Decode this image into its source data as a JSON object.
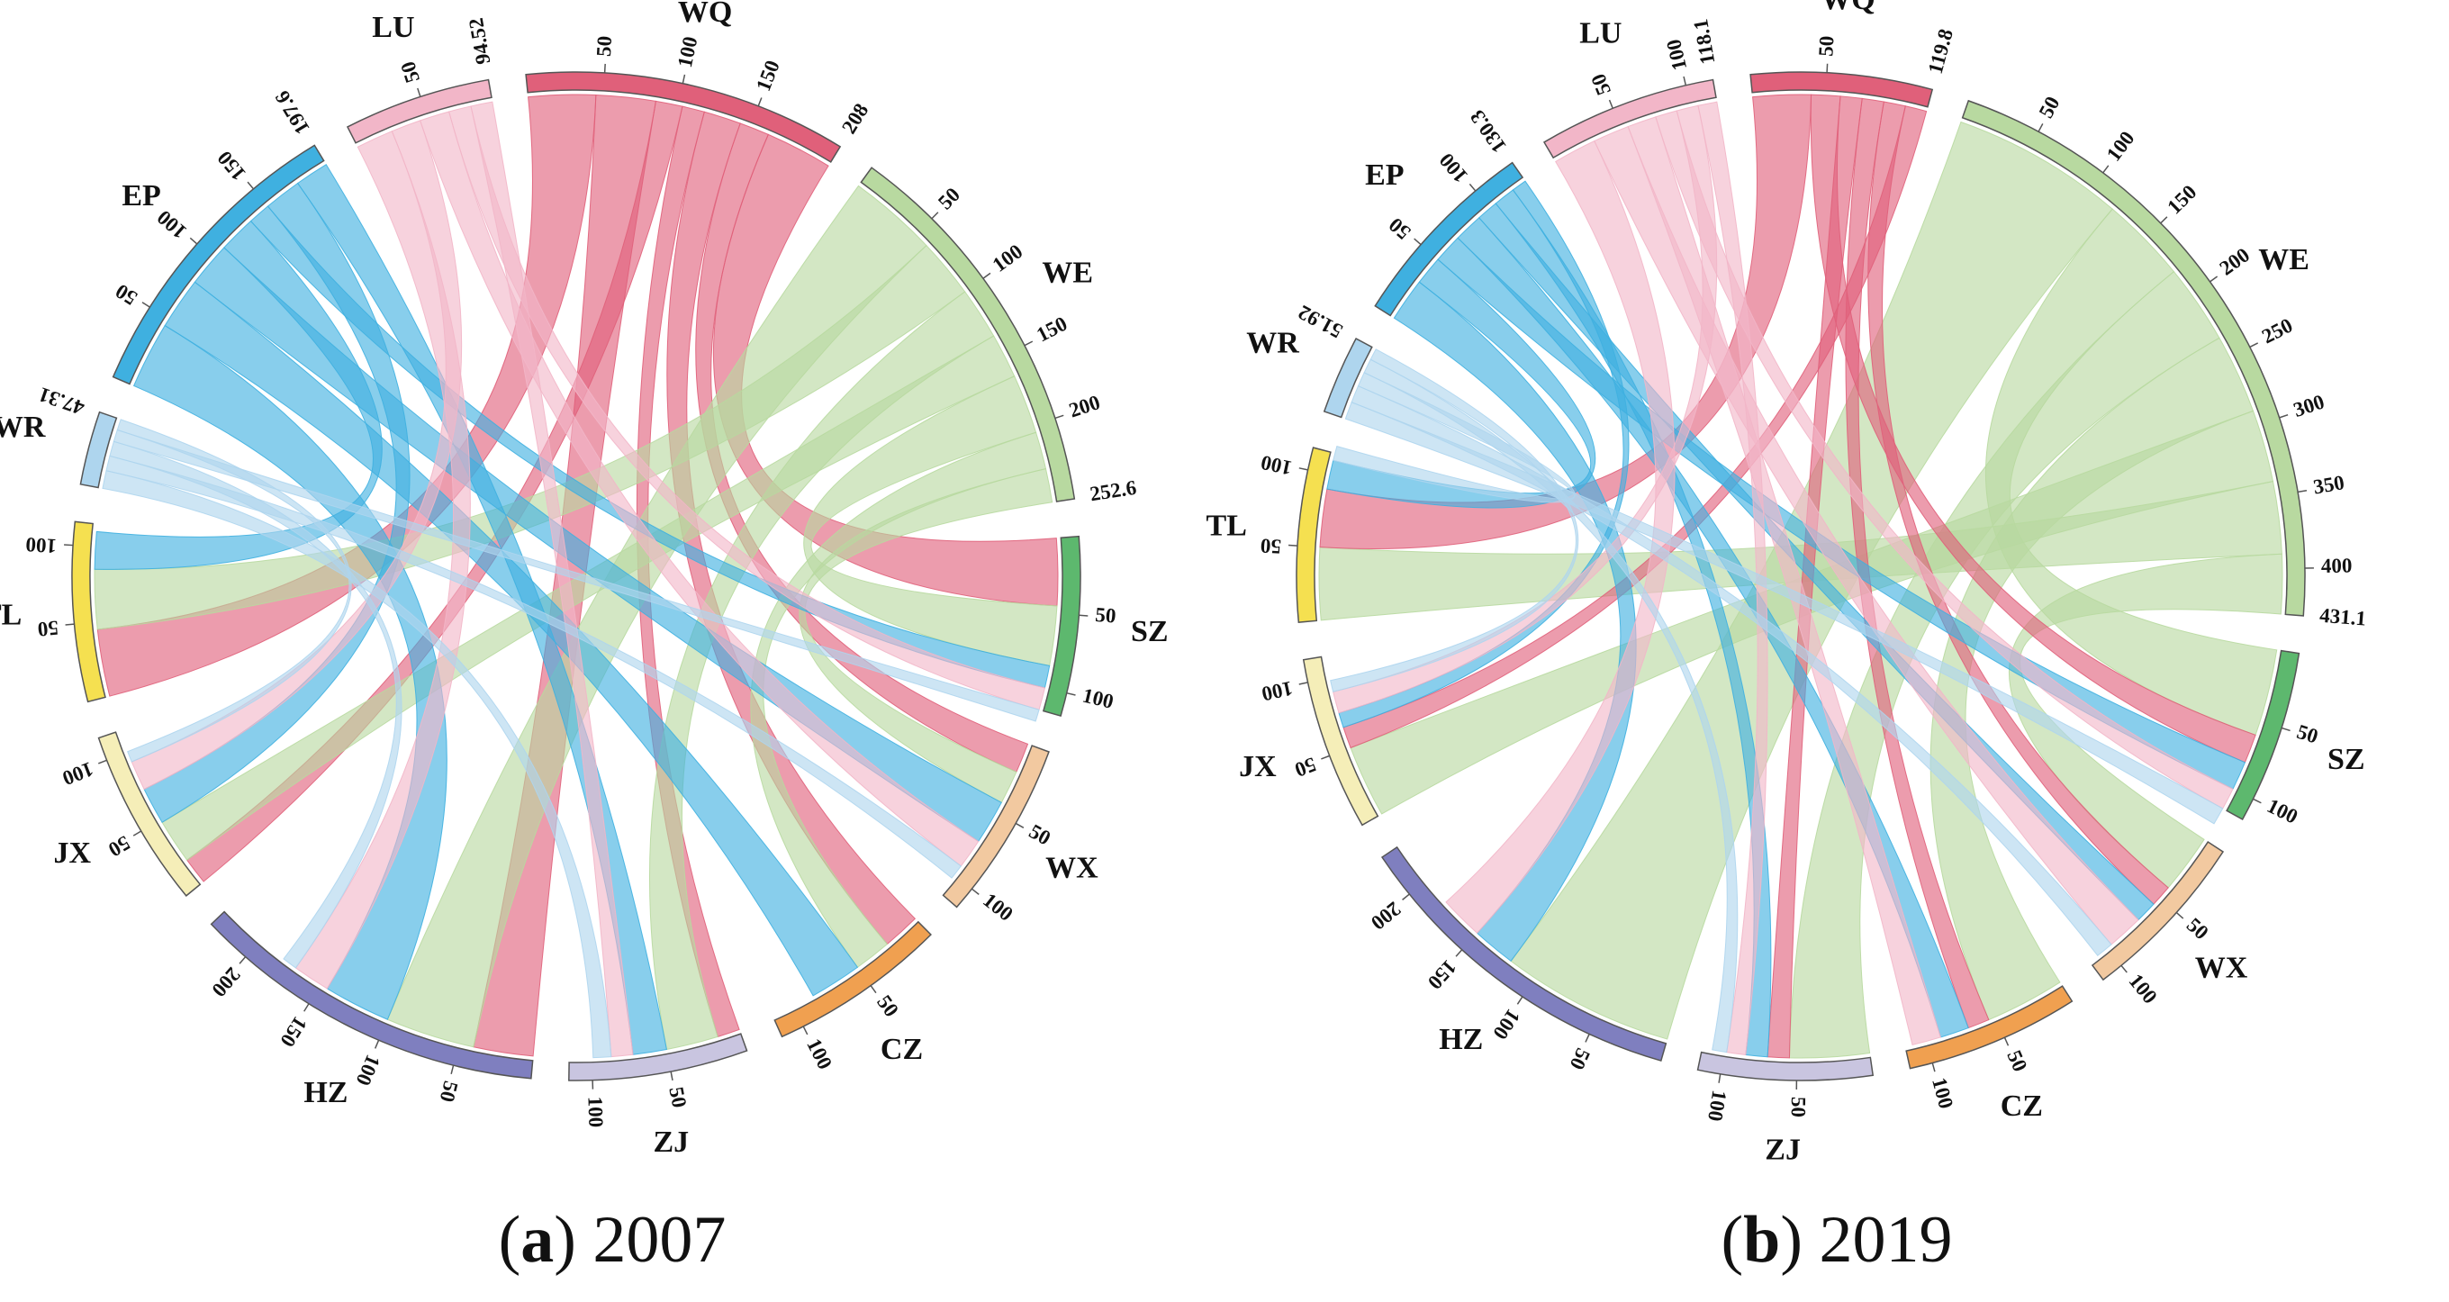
{
  "chart_data": [
    {
      "type": "chord",
      "title": "2007",
      "caption_letter": "a",
      "caption_year": "2007",
      "sectors": [
        {
          "name": "WQ",
          "total": 208,
          "total_label": "208",
          "ticks": [
            "50",
            "100",
            "150"
          ],
          "color": "#E0607A"
        },
        {
          "name": "WE",
          "total": 252.6,
          "total_label": "252.6",
          "ticks": [
            "50",
            "100",
            "150",
            "200"
          ],
          "color": "#B8D9A0"
        },
        {
          "name": "SZ",
          "total": 115,
          "total_label": "",
          "ticks": [
            "50",
            "100"
          ],
          "color": "#5DB86E"
        },
        {
          "name": "WX",
          "total": 115,
          "total_label": "",
          "ticks": [
            "50",
            "100"
          ],
          "color": "#F2C9A0"
        },
        {
          "name": "CZ",
          "total": 115,
          "total_label": "",
          "ticks": [
            "50",
            "100"
          ],
          "color": "#F0A050"
        },
        {
          "name": "ZJ",
          "total": 115,
          "total_label": "",
          "ticks": [
            "50",
            "100"
          ],
          "color": "#C9C5E0"
        },
        {
          "name": "HZ",
          "total": 230,
          "total_label": "",
          "ticks": [
            "50",
            "100",
            "150",
            "200"
          ],
          "color": "#7F7FBF"
        },
        {
          "name": "JX",
          "total": 115,
          "total_label": "",
          "ticks": [
            "50",
            "100"
          ],
          "color": "#F5EEB8"
        },
        {
          "name": "TL",
          "total": 115,
          "total_label": "",
          "ticks": [
            "50",
            "100"
          ],
          "color": "#F5E050"
        },
        {
          "name": "WR",
          "total": 47.31,
          "total_label": "47.31",
          "ticks": [],
          "color": "#AED5EE"
        },
        {
          "name": "EP",
          "total": 197.6,
          "total_label": "197.6",
          "ticks": [
            "50",
            "100",
            "150"
          ],
          "color": "#3FB0E0"
        },
        {
          "name": "LU",
          "total": 94.52,
          "total_label": "94.52",
          "ticks": [
            "50"
          ],
          "color": "#F2B6C8"
        }
      ],
      "flows": [
        {
          "source": "WQ",
          "target": "TL",
          "value": 45
        },
        {
          "source": "WQ",
          "target": "HZ",
          "value": 40
        },
        {
          "source": "WQ",
          "target": "JX",
          "value": 18
        },
        {
          "source": "WQ",
          "target": "ZJ",
          "value": 15
        },
        {
          "source": "WQ",
          "target": "CZ",
          "value": 25
        },
        {
          "source": "WQ",
          "target": "WX",
          "value": 20
        },
        {
          "source": "WQ",
          "target": "SZ",
          "value": 45
        },
        {
          "source": "WE",
          "target": "HZ",
          "value": 60
        },
        {
          "source": "WE",
          "target": "TL",
          "value": 40
        },
        {
          "source": "WE",
          "target": "ZJ",
          "value": 35
        },
        {
          "source": "WE",
          "target": "JX",
          "value": 30
        },
        {
          "source": "WE",
          "target": "SZ",
          "value": 40
        },
        {
          "source": "WE",
          "target": "CZ",
          "value": 25
        },
        {
          "source": "WE",
          "target": "WX",
          "value": 22.6
        },
        {
          "source": "EP",
          "target": "HZ",
          "value": 45
        },
        {
          "source": "EP",
          "target": "CZ",
          "value": 35
        },
        {
          "source": "EP",
          "target": "WX",
          "value": 30
        },
        {
          "source": "EP",
          "target": "TL",
          "value": 25
        },
        {
          "source": "EP",
          "target": "SZ",
          "value": 15
        },
        {
          "source": "EP",
          "target": "JX",
          "value": 25
        },
        {
          "source": "EP",
          "target": "ZJ",
          "value": 22.6
        },
        {
          "source": "LU",
          "target": "HZ",
          "value": 25
        },
        {
          "source": "LU",
          "target": "JX",
          "value": 20
        },
        {
          "source": "LU",
          "target": "WX",
          "value": 20
        },
        {
          "source": "LU",
          "target": "SZ",
          "value": 15
        },
        {
          "source": "LU",
          "target": "ZJ",
          "value": 14.52
        },
        {
          "source": "WR",
          "target": "ZJ",
          "value": 12
        },
        {
          "source": "WR",
          "target": "WX",
          "value": 10
        },
        {
          "source": "WR",
          "target": "HZ",
          "value": 10
        },
        {
          "source": "WR",
          "target": "SZ",
          "value": 8
        },
        {
          "source": "WR",
          "target": "JX",
          "value": 7.31
        }
      ]
    },
    {
      "type": "chord",
      "title": "2019",
      "caption_letter": "b",
      "caption_year": "2019",
      "sectors": [
        {
          "name": "WQ",
          "total": 119.8,
          "total_label": "119.8",
          "ticks": [
            "50"
          ],
          "color": "#E0607A"
        },
        {
          "name": "WE",
          "total": 431.1,
          "total_label": "431.1",
          "ticks": [
            "50",
            "100",
            "150",
            "200",
            "250",
            "300",
            "350",
            "400"
          ],
          "color": "#B8D9A0"
        },
        {
          "name": "SZ",
          "total": 115,
          "total_label": "",
          "ticks": [
            "50",
            "100"
          ],
          "color": "#5DB86E"
        },
        {
          "name": "WX",
          "total": 115,
          "total_label": "",
          "ticks": [
            "50",
            "100"
          ],
          "color": "#F2C9A0"
        },
        {
          "name": "CZ",
          "total": 115,
          "total_label": "",
          "ticks": [
            "50",
            "100"
          ],
          "color": "#F0A050"
        },
        {
          "name": "ZJ",
          "total": 115,
          "total_label": "",
          "ticks": [
            "50",
            "100"
          ],
          "color": "#C9C5E0"
        },
        {
          "name": "HZ",
          "total": 230,
          "total_label": "",
          "ticks": [
            "50",
            "100",
            "150",
            "200"
          ],
          "color": "#7F7FBF"
        },
        {
          "name": "JX",
          "total": 115,
          "total_label": "",
          "ticks": [
            "50",
            "100"
          ],
          "color": "#F5EEB8"
        },
        {
          "name": "TL",
          "total": 115,
          "total_label": "",
          "ticks": [
            "50",
            "100"
          ],
          "color": "#F5E050"
        },
        {
          "name": "WR",
          "total": 51.92,
          "total_label": "51.92",
          "ticks": [],
          "color": "#AED5EE"
        },
        {
          "name": "EP",
          "total": 130.3,
          "total_label": "130.3",
          "ticks": [
            "50",
            "100"
          ],
          "color": "#3FB0E0"
        },
        {
          "name": "LU",
          "total": 118.1,
          "total_label": "118.1",
          "ticks": [
            "50",
            "100"
          ],
          "color": "#F2B6C8"
        }
      ],
      "flows": [
        {
          "source": "WE",
          "target": "HZ",
          "value": 120
        },
        {
          "source": "WE",
          "target": "SZ",
          "value": 60
        },
        {
          "source": "WE",
          "target": "ZJ",
          "value": 55
        },
        {
          "source": "WE",
          "target": "CZ",
          "value": 55
        },
        {
          "source": "WE",
          "target": "JX",
          "value": 50
        },
        {
          "source": "WE",
          "target": "TL",
          "value": 50
        },
        {
          "source": "WE",
          "target": "WX",
          "value": 41.1
        },
        {
          "source": "WQ",
          "target": "TL",
          "value": 40
        },
        {
          "source": "WQ",
          "target": "SZ",
          "value": 20
        },
        {
          "source": "WQ",
          "target": "ZJ",
          "value": 15
        },
        {
          "source": "WQ",
          "target": "CZ",
          "value": 15
        },
        {
          "source": "WQ",
          "target": "WX",
          "value": 15
        },
        {
          "source": "WQ",
          "target": "JX",
          "value": 14.8
        },
        {
          "source": "EP",
          "target": "HZ",
          "value": 30
        },
        {
          "source": "EP",
          "target": "TL",
          "value": 20
        },
        {
          "source": "EP",
          "target": "SZ",
          "value": 20
        },
        {
          "source": "EP",
          "target": "CZ",
          "value": 20
        },
        {
          "source": "EP",
          "target": "WX",
          "value": 15
        },
        {
          "source": "EP",
          "target": "ZJ",
          "value": 15
        },
        {
          "source": "EP",
          "target": "JX",
          "value": 10.3
        },
        {
          "source": "LU",
          "target": "HZ",
          "value": 30
        },
        {
          "source": "LU",
          "target": "WX",
          "value": 25
        },
        {
          "source": "LU",
          "target": "CZ",
          "value": 20
        },
        {
          "source": "LU",
          "target": "SZ",
          "value": 15
        },
        {
          "source": "LU",
          "target": "JX",
          "value": 15
        },
        {
          "source": "LU",
          "target": "ZJ",
          "value": 13.1
        },
        {
          "source": "WR",
          "target": "SZ",
          "value": 12
        },
        {
          "source": "WR",
          "target": "WX",
          "value": 12
        },
        {
          "source": "WR",
          "target": "TL",
          "value": 10
        },
        {
          "source": "WR",
          "target": "ZJ",
          "value": 10
        },
        {
          "source": "WR",
          "target": "JX",
          "value": 7.92
        }
      ]
    }
  ]
}
